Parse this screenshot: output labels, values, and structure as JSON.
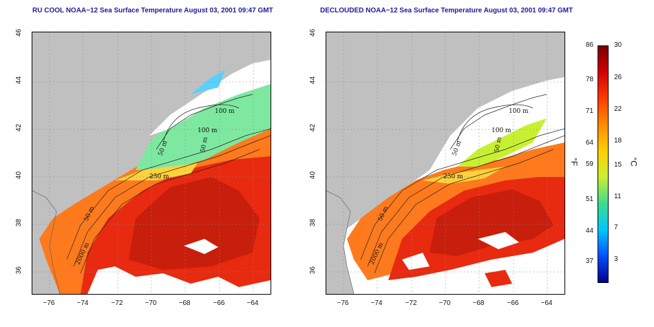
{
  "left_panel": {
    "title": "RU COOL NOAA−12 Sea Surface Temperature August 03, 2001 09:47 GMT",
    "contours": [
      "100 m",
      "100 m",
      "50 m",
      "50 m",
      "250 m",
      "50 m",
      "2000 m"
    ]
  },
  "right_panel": {
    "title": "DECLOUDED NOAA−12 Sea Surface Temperature August 03, 2001 09:47 GMT",
    "contours": [
      "100 m",
      "100 m",
      "50 m",
      "50 m",
      "250 m",
      "50 m",
      "2000 m"
    ]
  },
  "axes": {
    "x_ticks": [
      "−76",
      "−74",
      "−72",
      "−70",
      "−68",
      "−66",
      "−64"
    ],
    "y_ticks": [
      "46",
      "44",
      "42",
      "40",
      "38",
      "36"
    ],
    "xlim": [
      -77,
      -63
    ],
    "ylim": [
      35,
      46
    ]
  },
  "colorbar": {
    "fahrenheit_ticks": [
      "86",
      "78",
      "71",
      "64",
      "59",
      "51",
      "44",
      "37"
    ],
    "celsius_ticks": [
      "30",
      "26",
      "22",
      "18",
      "15",
      "11",
      "7",
      "3"
    ],
    "unit_f": "°F",
    "unit_c": "°C",
    "colors": [
      "#7a0000",
      "#d40000",
      "#ff3c00",
      "#ff8c00",
      "#ffd000",
      "#c8f032",
      "#3cdc8c",
      "#00c8ff",
      "#0050ff",
      "#00008c"
    ]
  },
  "colors": {
    "land": "#c0c0c0",
    "water_warm": "#e82a10",
    "water_mid": "#ff7a1c",
    "water_cool": "#ffd23c",
    "cloud_white": "#ffffff"
  }
}
